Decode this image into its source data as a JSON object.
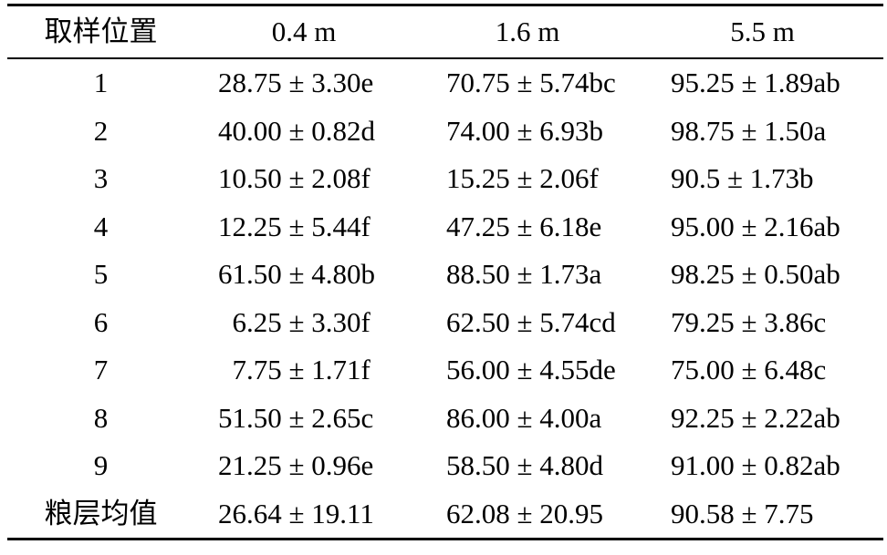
{
  "table": {
    "headers": [
      "取样位置",
      "0.4 m",
      "1.6 m",
      "5.5 m"
    ],
    "rows": [
      [
        "1",
        "28.75 ± 3.30e",
        "70.75 ± 5.74bc",
        "95.25 ± 1.89ab"
      ],
      [
        "2",
        "40.00 ± 0.82d",
        "74.00 ± 6.93b",
        "98.75 ± 1.50a"
      ],
      [
        "3",
        "10.50 ± 2.08f",
        "15.25 ± 2.06f",
        "90.5 ± 1.73b"
      ],
      [
        "4",
        "12.25 ± 5.44f",
        "47.25 ± 6.18e",
        "95.00 ± 2.16ab"
      ],
      [
        "5",
        "61.50 ± 4.80b",
        "88.50 ± 1.73a",
        "98.25 ± 0.50ab"
      ],
      [
        "6",
        "  6.25 ± 3.30f",
        "62.50 ± 5.74cd",
        "79.25 ± 3.86c"
      ],
      [
        "7",
        "  7.75 ± 1.71f",
        "56.00 ± 4.55de",
        "75.00 ± 6.48c"
      ],
      [
        "8",
        "51.50 ± 2.65c",
        "86.00 ± 4.00a",
        "92.25 ± 2.22ab"
      ],
      [
        "9",
        "21.25 ± 0.96e",
        "58.50 ± 4.80d",
        "91.00 ± 0.82ab"
      ],
      [
        "粮层均值",
        "26.64 ± 19.11",
        "62.08 ± 20.95",
        "90.58 ± 7.75"
      ]
    ]
  }
}
